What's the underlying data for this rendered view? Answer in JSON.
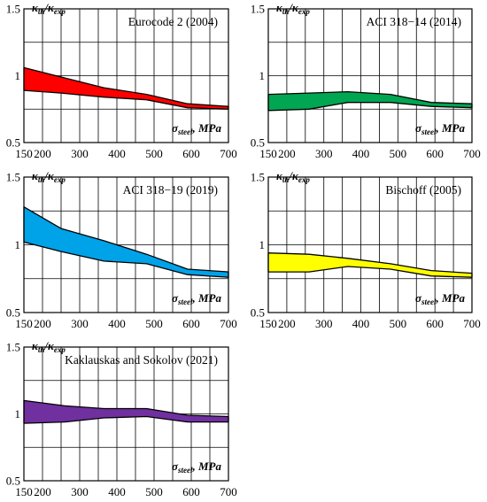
{
  "chart_data": [
    {
      "type": "area",
      "title": "Eurocode 2 (2004)",
      "ylabel": [
        "κ",
        "th",
        "/κ",
        "exp"
      ],
      "xlabel": [
        "σ",
        "steel",
        ", MPa"
      ],
      "x_ticks": [
        "150",
        "200",
        "300",
        "400",
        "500",
        "600",
        "700"
      ],
      "y_ticks": [
        "0.5",
        "1",
        "1.5"
      ],
      "xlim": [
        150,
        700
      ],
      "ylim": [
        0.5,
        1.5
      ],
      "fill_color": "#ff0000",
      "x": [
        150,
        250,
        365,
        480,
        590,
        700
      ],
      "upper": [
        1.06,
        0.99,
        0.91,
        0.86,
        0.79,
        0.77
      ],
      "lower": [
        0.89,
        0.87,
        0.84,
        0.82,
        0.76,
        0.75
      ]
    },
    {
      "type": "area",
      "title": "ACI 318−14 (2014)",
      "ylabel": [
        "κ",
        "th",
        "/κ",
        "exp"
      ],
      "xlabel": [
        "σ",
        "steel",
        ", MPa"
      ],
      "x_ticks": [
        "150",
        "200",
        "300",
        "400",
        "500",
        "600",
        "700"
      ],
      "y_ticks": [
        "0.5",
        "1",
        "1.5"
      ],
      "xlim": [
        150,
        700
      ],
      "ylim": [
        0.5,
        1.5
      ],
      "fill_color": "#00a651",
      "x": [
        150,
        260,
        365,
        480,
        590,
        700
      ],
      "upper": [
        0.86,
        0.87,
        0.88,
        0.86,
        0.8,
        0.79
      ],
      "lower": [
        0.74,
        0.75,
        0.8,
        0.8,
        0.77,
        0.76
      ]
    },
    {
      "type": "area",
      "title": "ACI 318−19 (2019)",
      "ylabel": [
        "κ",
        "th",
        "/κ",
        "exp"
      ],
      "xlabel": [
        "σ",
        "steel",
        ", MPa"
      ],
      "x_ticks": [
        "150",
        "200",
        "300",
        "400",
        "500",
        "600",
        "700"
      ],
      "y_ticks": [
        "0.5",
        "1",
        "1.5"
      ],
      "xlim": [
        150,
        700
      ],
      "ylim": [
        0.5,
        1.5
      ],
      "fill_color": "#00a2e8",
      "x": [
        150,
        250,
        365,
        480,
        590,
        700
      ],
      "upper": [
        1.28,
        1.12,
        1.03,
        0.93,
        0.82,
        0.8
      ],
      "lower": [
        1.02,
        0.95,
        0.88,
        0.86,
        0.78,
        0.76
      ]
    },
    {
      "type": "area",
      "title": "Bischoff (2005)",
      "ylabel": [
        "κ",
        "th",
        "/κ",
        "exp"
      ],
      "xlabel": [
        "σ",
        "steel",
        ", MPa"
      ],
      "x_ticks": [
        "150",
        "200",
        "300",
        "400",
        "500",
        "600",
        "700"
      ],
      "y_ticks": [
        "0.5",
        "1",
        "1.5"
      ],
      "xlim": [
        150,
        700
      ],
      "ylim": [
        0.5,
        1.5
      ],
      "fill_color": "#ffff00",
      "x": [
        150,
        260,
        365,
        480,
        590,
        700
      ],
      "upper": [
        0.94,
        0.93,
        0.9,
        0.86,
        0.81,
        0.79
      ],
      "lower": [
        0.8,
        0.8,
        0.84,
        0.82,
        0.77,
        0.76
      ]
    },
    {
      "type": "area",
      "title": "Kaklauskas and Sokolov (2021)",
      "ylabel": [
        "κ",
        "th",
        "/κ",
        "exp"
      ],
      "xlabel": [
        "σ",
        "steel",
        ", MPa"
      ],
      "x_ticks": [
        "150",
        "200",
        "300",
        "400",
        "500",
        "600",
        "700"
      ],
      "y_ticks": [
        "0.5",
        "1",
        "1.5"
      ],
      "xlim": [
        150,
        700
      ],
      "ylim": [
        0.5,
        1.5
      ],
      "fill_color": "#7030a0",
      "x": [
        150,
        260,
        365,
        480,
        590,
        700
      ],
      "upper": [
        1.1,
        1.06,
        1.04,
        1.04,
        0.99,
        0.98
      ],
      "lower": [
        0.93,
        0.94,
        0.97,
        0.98,
        0.94,
        0.94
      ]
    }
  ]
}
